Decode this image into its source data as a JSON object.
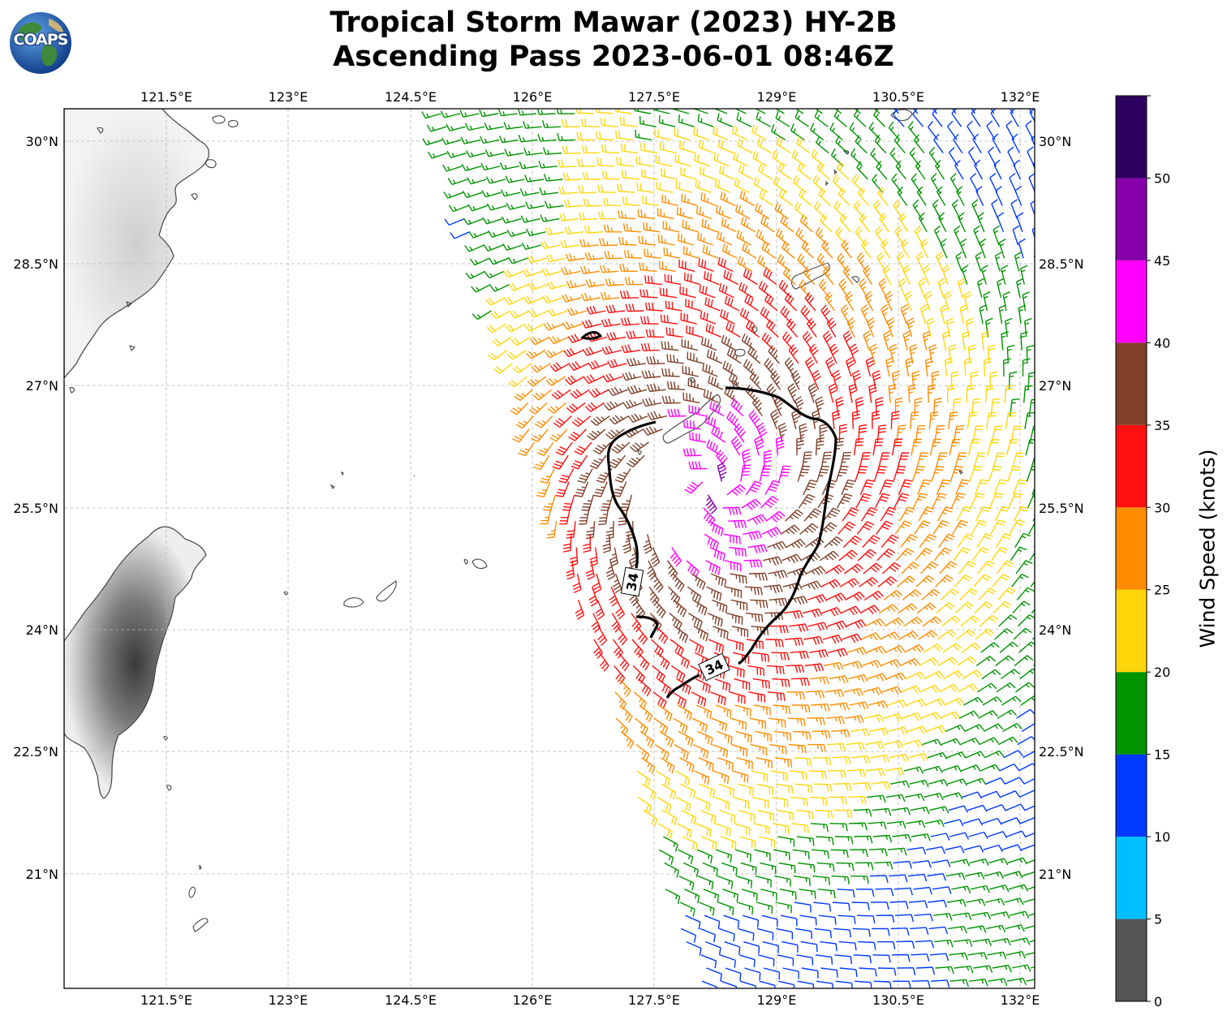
{
  "logo_text": "COAPS",
  "title_line1": "Tropical Storm Mawar (2023) HY-2B",
  "title_line2": "Ascending Pass 2023-06-01 08:46Z",
  "map": {
    "lon_labels": [
      "121.5°E",
      "123°E",
      "124.5°E",
      "126°E",
      "127.5°E",
      "129°E",
      "130.5°E",
      "132°E"
    ],
    "lat_labels": [
      "30°N",
      "28.5°N",
      "27°N",
      "25.5°N",
      "24°N",
      "22.5°N",
      "21°N"
    ],
    "contour_label": "34",
    "contour_knots": 34
  },
  "colorbar": {
    "label": "Wind Speed (knots)",
    "ticks": [
      "0",
      "5",
      "10",
      "15",
      "20",
      "25",
      "30",
      "35",
      "40",
      "45",
      "50"
    ],
    "bins": [
      {
        "from": 0,
        "to": 5,
        "color": "#555555"
      },
      {
        "from": 5,
        "to": 10,
        "color": "#00bfff"
      },
      {
        "from": 10,
        "to": 15,
        "color": "#0039ff"
      },
      {
        "from": 15,
        "to": 20,
        "color": "#009400"
      },
      {
        "from": 20,
        "to": 25,
        "color": "#ffd60a"
      },
      {
        "from": 25,
        "to": 30,
        "color": "#ff8c00"
      },
      {
        "from": 30,
        "to": 35,
        "color": "#ff0f0f"
      },
      {
        "from": 35,
        "to": 40,
        "color": "#80402a"
      },
      {
        "from": 40,
        "to": 45,
        "color": "#ff00ff"
      },
      {
        "from": 45,
        "to": 50,
        "color": "#8800aa"
      },
      {
        "from": 50,
        "to": 55,
        "color": "#2d0060"
      }
    ]
  }
}
